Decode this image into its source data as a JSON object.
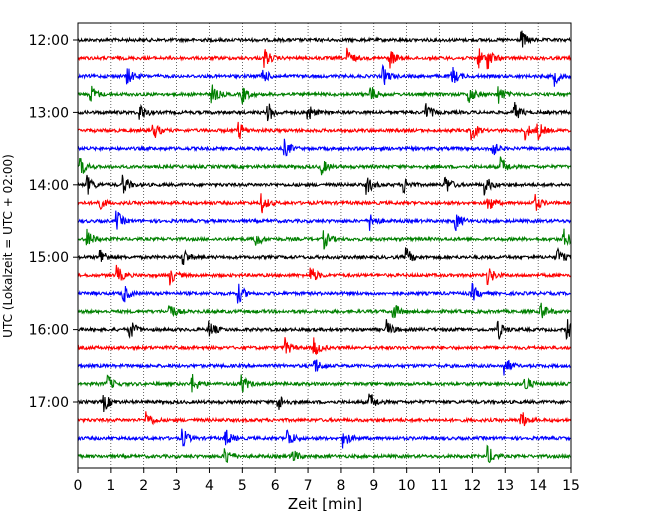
{
  "chart_data": {
    "type": "line",
    "title": "",
    "xlabel": "Zeit  [min]",
    "ylabel": "UTC (Lokalzeit = UTC + 02:00)",
    "xlim": [
      0,
      15
    ],
    "x_ticks": [
      "0",
      "1",
      "2",
      "3",
      "4",
      "5",
      "6",
      "7",
      "8",
      "9",
      "10",
      "11",
      "12",
      "13",
      "14",
      "15"
    ],
    "y_ticks": [
      "12:00",
      "13:00",
      "14:00",
      "15:00",
      "16:00",
      "17:00"
    ],
    "grid": "vertical dotted lines at each minute",
    "trace_minutes": 15,
    "traces_per_hour": 4,
    "color_cycle": [
      "#000000",
      "#ff0000",
      "#0000ff",
      "#008000"
    ],
    "traces": [
      {
        "start": "12:00",
        "events": [
          13.5
        ]
      },
      {
        "start": "12:15",
        "events": [
          5.7,
          8.2,
          9.5,
          12.2,
          12.5
        ]
      },
      {
        "start": "12:30",
        "events": [
          1.5,
          5.6,
          9.3,
          11.4,
          14.5
        ]
      },
      {
        "start": "12:45",
        "events": [
          0.4,
          4.1,
          5.0,
          8.9,
          11.9,
          12.8
        ]
      },
      {
        "start": "13:00",
        "events": [
          1.9,
          5.8,
          7.0,
          10.6,
          13.3
        ]
      },
      {
        "start": "13:15",
        "events": [
          2.3,
          4.9,
          12.0,
          13.6,
          14.0
        ]
      },
      {
        "start": "13:30",
        "events": [
          6.3,
          12.6
        ]
      },
      {
        "start": "13:45",
        "events": [
          0.1,
          7.4,
          12.9
        ]
      },
      {
        "start": "14:00",
        "events": [
          0.3,
          1.4,
          8.8,
          9.9,
          11.2,
          12.4
        ]
      },
      {
        "start": "14:15",
        "events": [
          0.6,
          5.6,
          12.5,
          13.9
        ]
      },
      {
        "start": "14:30",
        "events": [
          1.2,
          8.9,
          11.5
        ]
      },
      {
        "start": "14:45",
        "events": [
          0.3,
          5.4,
          7.5,
          14.8
        ]
      },
      {
        "start": "15:00",
        "events": [
          0.7,
          3.2,
          10.0,
          14.6
        ]
      },
      {
        "start": "15:15",
        "events": [
          1.2,
          2.8,
          7.1,
          12.5
        ]
      },
      {
        "start": "15:30",
        "events": [
          1.4,
          4.9,
          12.0
        ]
      },
      {
        "start": "15:45",
        "events": [
          2.8,
          9.6,
          14.1
        ]
      },
      {
        "start": "16:00",
        "events": [
          1.6,
          4.0,
          9.4,
          12.8,
          14.9
        ]
      },
      {
        "start": "16:15",
        "events": [
          6.3,
          7.2
        ]
      },
      {
        "start": "16:30",
        "events": [
          7.2,
          13.0
        ]
      },
      {
        "start": "16:45",
        "events": [
          0.9,
          3.5,
          5.0,
          13.6
        ]
      },
      {
        "start": "17:00",
        "events": [
          0.8,
          6.1,
          8.9
        ]
      },
      {
        "start": "17:15",
        "events": [
          2.1,
          13.5
        ]
      },
      {
        "start": "17:30",
        "events": [
          3.2,
          4.5,
          6.4,
          8.1
        ]
      },
      {
        "start": "17:45",
        "events": [
          4.5,
          6.5,
          12.5
        ]
      }
    ]
  }
}
